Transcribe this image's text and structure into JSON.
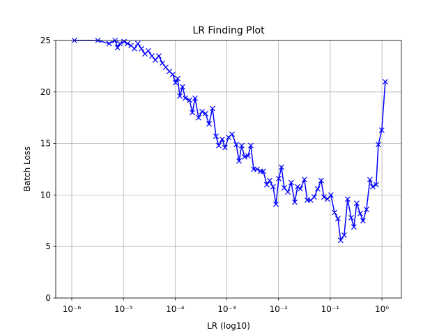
{
  "chart_data": {
    "type": "line",
    "title": "LR Finding Plot",
    "x_label": "LR (log10)",
    "y_label": "Batch Loss",
    "xscale": "log",
    "grid": true,
    "marker": "x",
    "xlim": [
      4.9e-07,
      2.38
    ],
    "ylim": [
      0,
      25
    ],
    "xticks": [
      {
        "value": 1e-06,
        "label": "10⁻⁶"
      },
      {
        "value": 1e-05,
        "label": "10⁻⁵"
      },
      {
        "value": 0.0001,
        "label": "10⁻⁴"
      },
      {
        "value": 0.001,
        "label": "10⁻³"
      },
      {
        "value": 0.01,
        "label": "10⁻²"
      },
      {
        "value": 0.1,
        "label": "10⁻¹"
      },
      {
        "value": 1,
        "label": "10⁰"
      }
    ],
    "yticks": [
      0,
      5,
      10,
      15,
      20,
      25
    ],
    "x": [
      1.13e-06,
      3.2e-06,
      5.3e-06,
      6.9e-06,
      7.7e-06,
      8.5e-06,
      1.03e-05,
      1.2e-05,
      1.4e-05,
      1.63e-05,
      1.9e-05,
      2.23e-05,
      2.6e-05,
      3.03e-05,
      3.55e-05,
      4.14e-05,
      4.84e-05,
      5.65e-05,
      6.6e-05,
      7.7e-05,
      9e-05,
      0.000102,
      0.000112,
      0.000123,
      0.000139,
      0.000157,
      0.00019,
      0.000215,
      0.000243,
      0.000284,
      0.000331,
      0.000387,
      0.000452,
      0.000527,
      0.000617,
      0.000698,
      0.000815,
      0.00092,
      0.00108,
      0.00126,
      0.00152,
      0.00172,
      0.00194,
      0.0022,
      0.00257,
      0.00291,
      0.0033,
      0.00385,
      0.00449,
      0.00508,
      0.00594,
      0.00672,
      0.00785,
      0.00889,
      0.0101,
      0.0114,
      0.0129,
      0.0151,
      0.0176,
      0.0206,
      0.0233,
      0.0263,
      0.0317,
      0.0359,
      0.042,
      0.049,
      0.0572,
      0.0668,
      0.0757,
      0.0884,
      0.103,
      0.121,
      0.141,
      0.159,
      0.186,
      0.217,
      0.254,
      0.287,
      0.325,
      0.38,
      0.43,
      0.502,
      0.586,
      0.664,
      0.774,
      0.851,
      0.993,
      1.16
    ],
    "series": [
      {
        "color": "#0000ff",
        "values": [
          25,
          25,
          24.7,
          25,
          24.3,
          24.7,
          24.9,
          24.7,
          24.5,
          24.2,
          24.7,
          24.2,
          23.7,
          24,
          23.5,
          23.1,
          23.5,
          22.8,
          22.4,
          22,
          21.7,
          20.9,
          21.3,
          19.6,
          20.5,
          19.4,
          19.2,
          18,
          19.4,
          17.5,
          18.1,
          17.9,
          16.9,
          18.4,
          15.7,
          14.8,
          15.4,
          14.6,
          15.6,
          15.9,
          14.9,
          13.3,
          14.8,
          13.7,
          13.8,
          14.8,
          12.5,
          12.5,
          12.3,
          12.3,
          11,
          11.4,
          10.8,
          9.1,
          11.6,
          12.7,
          10.7,
          10.3,
          11.2,
          9.3,
          10.8,
          10.6,
          11.5,
          9.5,
          9.5,
          9.8,
          10.6,
          11.4,
          9.8,
          9.6,
          10,
          8.3,
          7.7,
          5.6,
          6.1,
          9.6,
          7.8,
          6.9,
          9.2,
          8.2,
          7.5,
          8.6,
          11.5,
          10.8,
          11,
          14.9,
          16.3,
          21
        ]
      }
    ]
  }
}
